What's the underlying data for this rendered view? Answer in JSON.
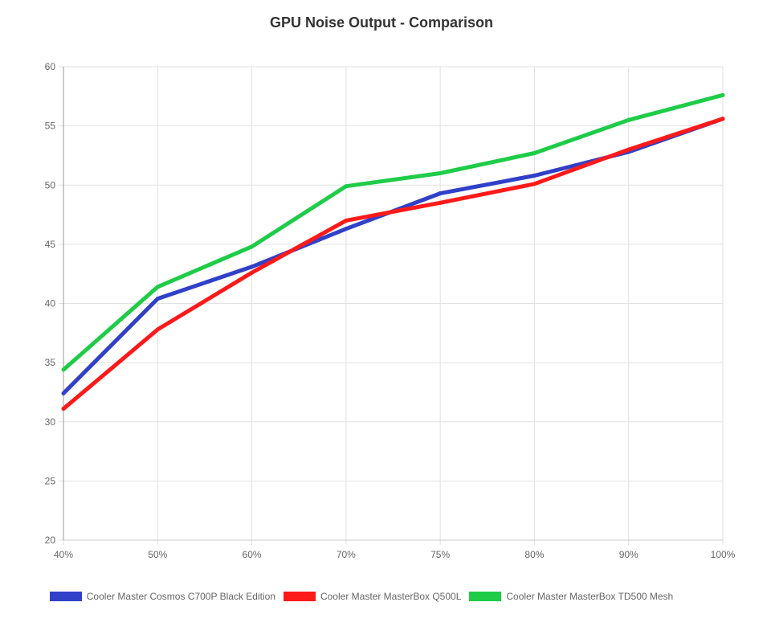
{
  "chart_data": {
    "type": "line",
    "title": "GPU Noise Output - Comparison",
    "xlabel": "",
    "ylabel": "",
    "categories": [
      "40%",
      "50%",
      "60%",
      "70%",
      "75%",
      "80%",
      "90%",
      "100%"
    ],
    "ylim": [
      20,
      60
    ],
    "yticks": [
      20,
      25,
      30,
      35,
      40,
      45,
      50,
      55,
      60
    ],
    "grid": true,
    "legend_position": "bottom",
    "series": [
      {
        "name": "Cooler Master Cosmos C700P Black Edition",
        "color": "#3040c8",
        "values": [
          32.4,
          40.4,
          43.1,
          46.3,
          49.3,
          50.8,
          52.8,
          55.6
        ]
      },
      {
        "name": "Cooler Master MasterBox Q500L",
        "color": "#ff1a1a",
        "values": [
          31.1,
          37.8,
          42.6,
          47.0,
          48.5,
          50.1,
          53.0,
          55.6
        ]
      },
      {
        "name": "Cooler Master MasterBox TD500 Mesh",
        "color": "#1ecc48",
        "values": [
          34.4,
          41.4,
          44.8,
          49.9,
          51.0,
          52.7,
          55.5,
          57.6
        ]
      }
    ]
  }
}
